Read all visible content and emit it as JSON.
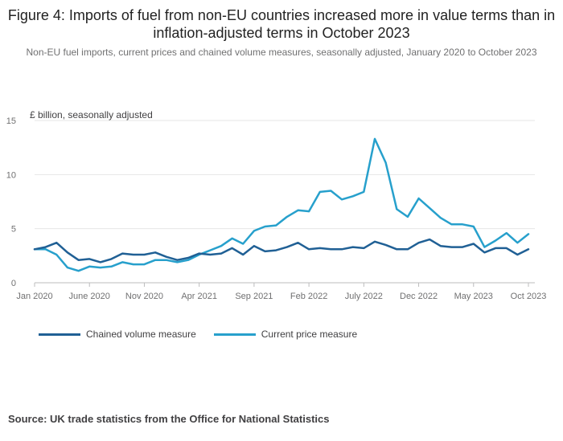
{
  "title": "Figure 4: Imports of fuel from non-EU countries increased more in value terms than in inflation-adjusted terms in October 2023",
  "subtitle": "Non-EU fuel imports, current prices and chained volume measures, seasonally adjusted, January 2020 to October 2023",
  "source": "Source: UK trade statistics from the Office for National Statistics",
  "chart_data": {
    "type": "line",
    "title": "Figure 4: Imports of fuel from non-EU countries increased more in value terms than in inflation-adjusted terms in October 2023",
    "ylabel": "£ billion, seasonally adjusted",
    "ylim": [
      0,
      15
    ],
    "yticks": [
      0,
      5,
      10,
      15
    ],
    "grid": true,
    "legend": "bottom",
    "x_tick_labels": [
      {
        "label": "Jan 2020",
        "index": 0
      },
      {
        "label": "June 2020",
        "index": 5
      },
      {
        "label": "Nov 2020",
        "index": 10
      },
      {
        "label": "Apr 2021",
        "index": 15
      },
      {
        "label": "Sep 2021",
        "index": 20
      },
      {
        "label": "Feb 2022",
        "index": 25
      },
      {
        "label": "July 2022",
        "index": 30
      },
      {
        "label": "Dec 2022",
        "index": 35
      },
      {
        "label": "May 2023",
        "index": 40
      },
      {
        "label": "Oct 2023",
        "index": 45
      }
    ],
    "x": [
      "2020-01",
      "2020-02",
      "2020-03",
      "2020-04",
      "2020-05",
      "2020-06",
      "2020-07",
      "2020-08",
      "2020-09",
      "2020-10",
      "2020-11",
      "2020-12",
      "2021-01",
      "2021-02",
      "2021-03",
      "2021-04",
      "2021-05",
      "2021-06",
      "2021-07",
      "2021-08",
      "2021-09",
      "2021-10",
      "2021-11",
      "2021-12",
      "2022-01",
      "2022-02",
      "2022-03",
      "2022-04",
      "2022-05",
      "2022-06",
      "2022-07",
      "2022-08",
      "2022-09",
      "2022-10",
      "2022-11",
      "2022-12",
      "2023-01",
      "2023-02",
      "2023-03",
      "2023-04",
      "2023-05",
      "2023-06",
      "2023-07",
      "2023-08",
      "2023-09",
      "2023-10"
    ],
    "series": [
      {
        "name": "Chained volume measure",
        "color": "#206095",
        "values": [
          3.1,
          3.3,
          3.7,
          2.8,
          2.1,
          2.2,
          1.9,
          2.2,
          2.7,
          2.6,
          2.6,
          2.8,
          2.4,
          2.1,
          2.3,
          2.7,
          2.6,
          2.7,
          3.2,
          2.6,
          3.4,
          2.9,
          3.0,
          3.3,
          3.7,
          3.1,
          3.2,
          3.1,
          3.1,
          3.3,
          3.2,
          3.8,
          3.5,
          3.1,
          3.1,
          3.7,
          4.0,
          3.4,
          3.3,
          3.3,
          3.6,
          2.8,
          3.2,
          3.2,
          2.6,
          3.1
        ]
      },
      {
        "name": "Current price measure",
        "color": "#27a0cc",
        "values": [
          3.1,
          3.1,
          2.6,
          1.4,
          1.1,
          1.5,
          1.4,
          1.5,
          1.9,
          1.7,
          1.7,
          2.1,
          2.1,
          1.9,
          2.1,
          2.6,
          3.0,
          3.4,
          4.1,
          3.6,
          4.8,
          5.2,
          5.3,
          6.1,
          6.7,
          6.6,
          8.4,
          8.5,
          7.7,
          8.0,
          8.4,
          13.3,
          11.1,
          6.8,
          6.1,
          7.8,
          6.9,
          6.0,
          5.4,
          5.4,
          5.2,
          3.3,
          3.9,
          4.6,
          3.7,
          4.5
        ]
      }
    ]
  }
}
